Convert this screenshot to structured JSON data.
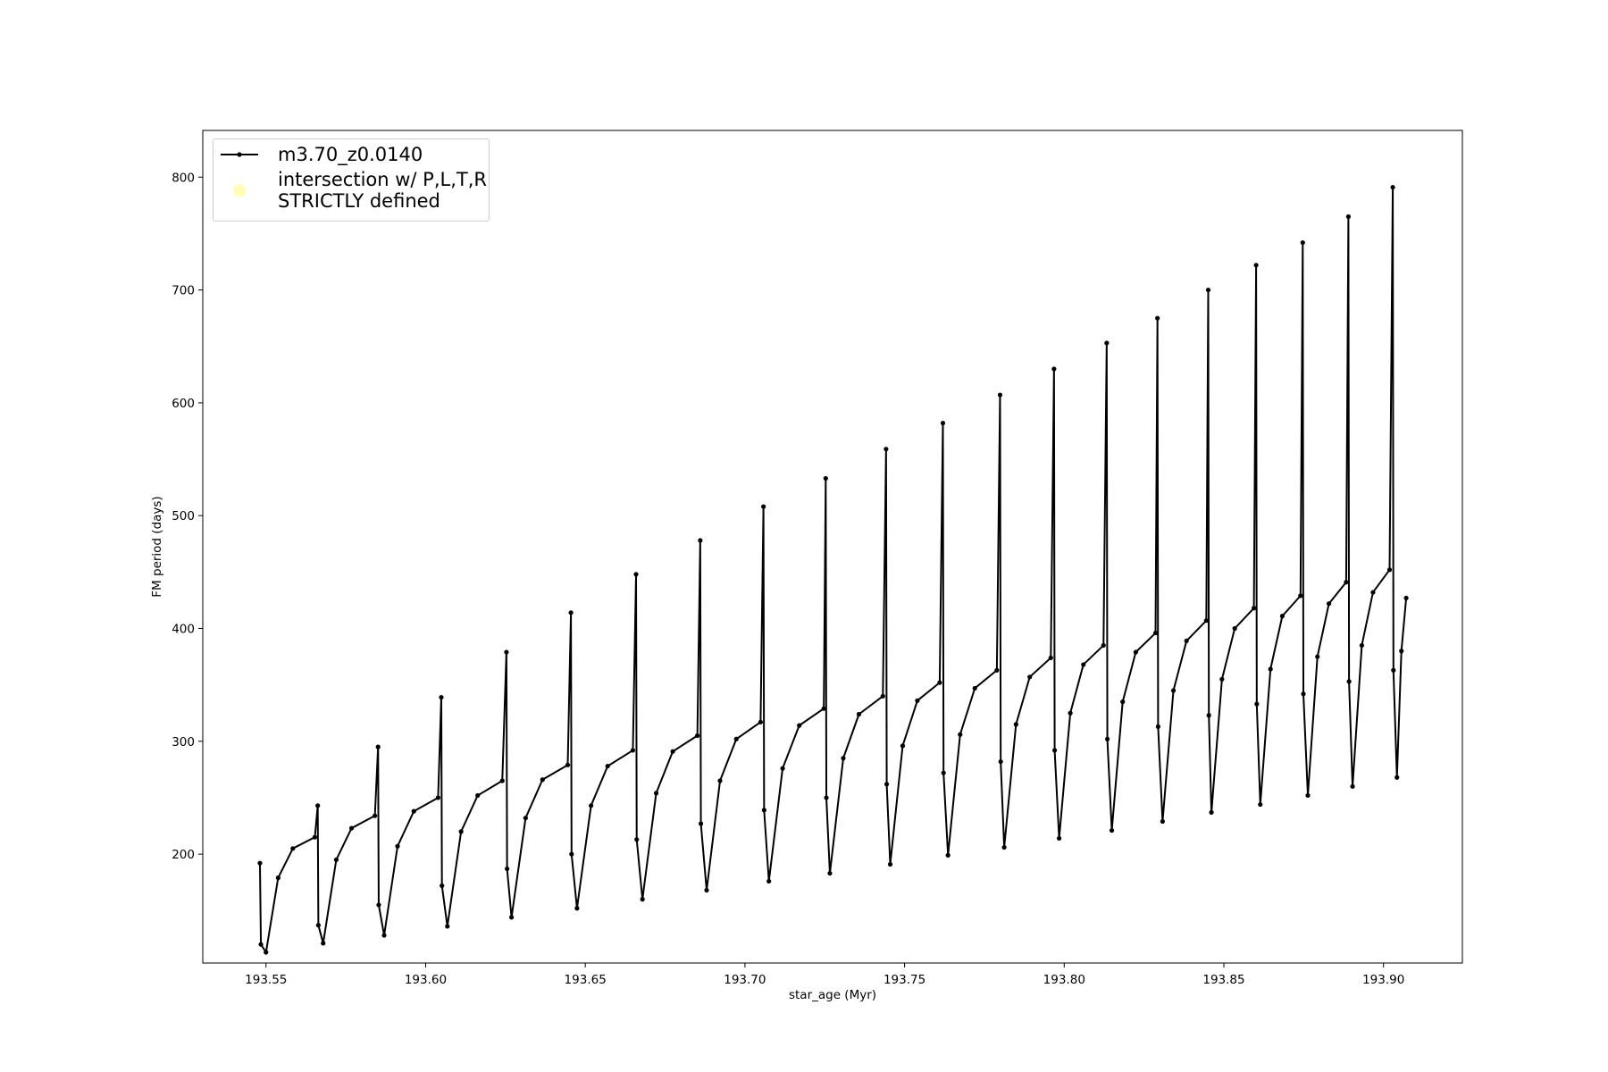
{
  "chart_data": {
    "type": "line",
    "xlabel": "star_age (Myr)",
    "ylabel": "FM period (days)",
    "xlim": [
      193.5302,
      193.9247
    ],
    "ylim": [
      103.5,
      841.4
    ],
    "xticks": [
      193.55,
      {
        "value": 193.6,
        "label": "193.60"
      },
      193.65,
      {
        "value": 193.7,
        "label": "193.70"
      },
      193.75,
      {
        "value": 193.8,
        "label": "193.80"
      },
      193.85,
      {
        "value": 193.9,
        "label": "193.90"
      }
    ],
    "yticks": [
      200,
      300,
      400,
      500,
      600,
      700,
      800
    ],
    "legend": "upper left",
    "grid": false,
    "series": [
      {
        "name": "m3.70_z0.0140",
        "color": "#000000",
        "x": [
          193.5481,
          193.5484,
          193.55,
          193.5538,
          193.5584,
          193.5653,
          193.5662,
          193.5664,
          193.5679,
          193.572,
          193.5768,
          193.5841,
          193.5851,
          193.5853,
          193.587,
          193.5912,
          193.5963,
          193.6039,
          193.6049,
          193.6051,
          193.6068,
          193.6111,
          193.6163,
          193.624,
          193.6253,
          193.6255,
          193.6269,
          193.6313,
          193.6366,
          193.6445,
          193.6455,
          193.6457,
          193.6474,
          193.6518,
          193.657,
          193.6649,
          193.6659,
          193.6661,
          193.6679,
          193.6722,
          193.6774,
          193.6851,
          193.686,
          193.6862,
          193.688,
          193.6922,
          193.6973,
          193.7049,
          193.7058,
          193.706,
          193.7075,
          193.7118,
          193.717,
          193.7247,
          193.7253,
          193.7255,
          193.7266,
          193.7308,
          193.7357,
          193.7432,
          193.7442,
          193.7444,
          193.7455,
          193.7494,
          193.754,
          193.761,
          193.762,
          193.7622,
          193.7636,
          193.7674,
          193.772,
          193.7789,
          193.7799,
          193.7801,
          193.7812,
          193.7849,
          193.7892,
          193.7958,
          193.7968,
          193.797,
          193.7984,
          193.8019,
          193.806,
          193.8123,
          193.8133,
          193.8135,
          193.8149,
          193.8183,
          193.8224,
          193.8286,
          193.8292,
          193.8294,
          193.8308,
          193.8342,
          193.8383,
          193.8445,
          193.8451,
          193.8453,
          193.8461,
          193.8494,
          193.8534,
          193.8594,
          193.8601,
          193.8603,
          193.8614,
          193.8646,
          193.8683,
          193.874,
          193.8747,
          193.8749,
          193.8763,
          193.8793,
          193.8829,
          193.8883,
          193.889,
          193.8892,
          193.8903,
          193.8932,
          193.8967,
          193.9019,
          193.9029,
          193.9031,
          193.9042,
          193.9056,
          193.9071
        ],
        "values": [
          192,
          120,
          113,
          179,
          205,
          215,
          243,
          137,
          121,
          195,
          223,
          234,
          295,
          155,
          128,
          207,
          238,
          250,
          339,
          172,
          136,
          220,
          252,
          265,
          379,
          187,
          144,
          232,
          266,
          279,
          414,
          200,
          152,
          243,
          278,
          292,
          448,
          213,
          160,
          254,
          291,
          305,
          478,
          227,
          168,
          265,
          302,
          317,
          508,
          239,
          176,
          276,
          314,
          329,
          533,
          250,
          183,
          285,
          324,
          340,
          559,
          262,
          191,
          296,
          336,
          352,
          582,
          272,
          199,
          306,
          347,
          363,
          607,
          282,
          206,
          315,
          357,
          374,
          630,
          292,
          214,
          325,
          368,
          385,
          653,
          302,
          221,
          335,
          379,
          396,
          675,
          313,
          229,
          345,
          389,
          407,
          700,
          323,
          237,
          355,
          400,
          418,
          722,
          333,
          244,
          364,
          411,
          429,
          742,
          342,
          252,
          375,
          422,
          441,
          765,
          353,
          260,
          385,
          432,
          452,
          791,
          363,
          268,
          380,
          427
        ]
      },
      {
        "name": "intersection w/ P,L,T,R\nSTRICTLY defined",
        "color": "#ffffb3",
        "type": "scatter",
        "x": [],
        "values": []
      }
    ]
  }
}
